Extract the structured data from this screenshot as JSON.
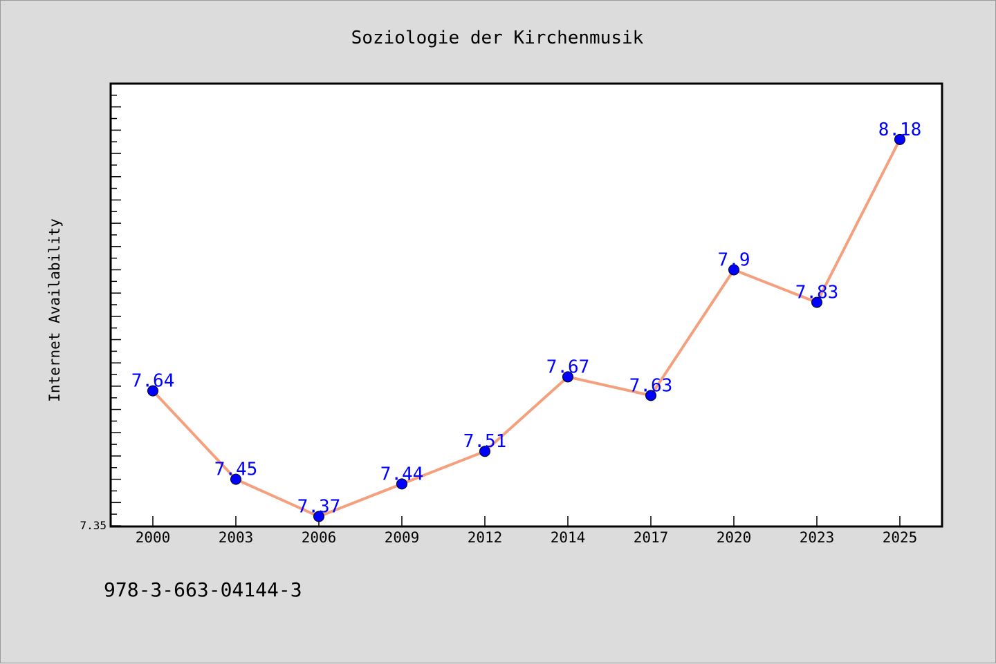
{
  "chart_data": {
    "type": "line",
    "title": "Soziologie der Kirchenmusik",
    "xlabel": "",
    "ylabel": "Internet Availability",
    "categories": [
      "2000",
      "2003",
      "2006",
      "2009",
      "2012",
      "2014",
      "2017",
      "2020",
      "2023",
      "2025"
    ],
    "series": [
      {
        "values": [
          7.64,
          7.45,
          7.37,
          7.44,
          7.51,
          7.67,
          7.63,
          7.9,
          7.83,
          8.18
        ],
        "data_labels": [
          "7.64",
          "7.45",
          "7.37",
          "7.44",
          "7.51",
          "7.67",
          "7.63",
          "7.9",
          "7.83",
          "8.18"
        ]
      }
    ],
    "y_tick_labels": [
      "7.35"
    ],
    "ylim": [
      7.35,
      8.3
    ],
    "grid": false,
    "legend": "none",
    "line_color": "#f4a07e",
    "marker_color": "#0000ff",
    "label_color": "#0000ff"
  },
  "footer": {
    "isbn": "978-3-663-04144-3"
  }
}
